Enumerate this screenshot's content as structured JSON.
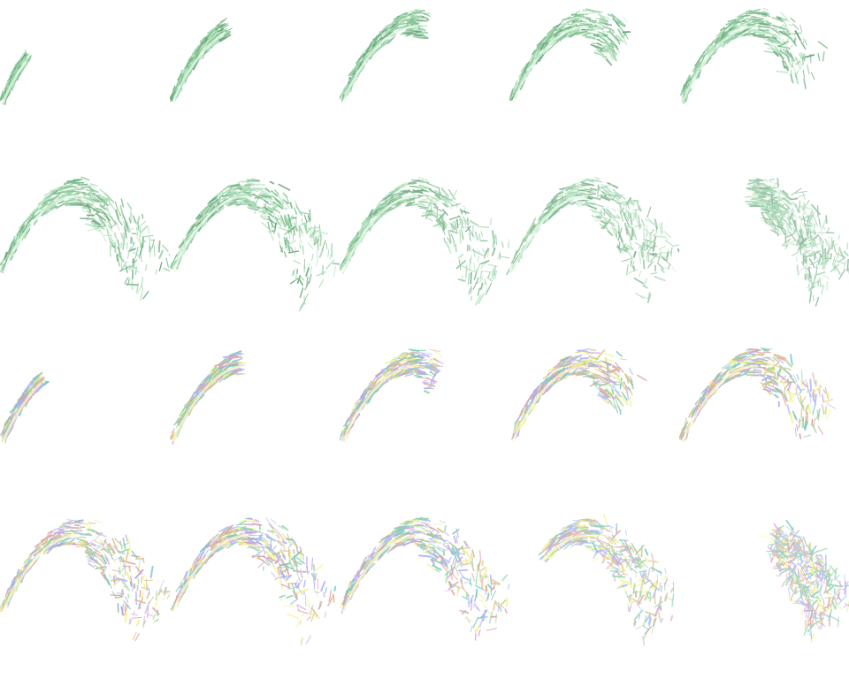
{
  "figure": {
    "grid": {
      "rows": 4,
      "columns": 5
    },
    "sequences": [
      {
        "name": "",
        "palette": [
          "#7fbf8f",
          "#9ad3a8",
          "#6fa67f",
          "#b7e6c2"
        ],
        "frames": [
          {
            "growth": 0.15,
            "fray": 0.0,
            "opacity": 1.0
          },
          {
            "growth": 0.35,
            "fray": 0.0,
            "opacity": 1.0
          },
          {
            "growth": 0.55,
            "fray": 0.05,
            "opacity": 1.0
          },
          {
            "growth": 0.72,
            "fray": 0.1,
            "opacity": 1.0
          },
          {
            "growth": 0.85,
            "fray": 0.2,
            "opacity": 1.0
          },
          {
            "growth": 1.0,
            "fray": 0.3,
            "opacity": 1.0
          },
          {
            "growth": 1.0,
            "fray": 0.35,
            "opacity": 1.0
          },
          {
            "growth": 1.0,
            "fray": 0.4,
            "opacity": 0.95
          },
          {
            "growth": 1.0,
            "fray": 0.5,
            "opacity": 0.85
          },
          {
            "growth": 1.0,
            "fray": 0.6,
            "opacity": 0.75,
            "trim_start": 0.45
          }
        ]
      },
      {
        "name": "",
        "palette": [
          "#8fd6a0",
          "#f2f28a",
          "#79c9c2",
          "#c7a0e0",
          "#e0a8a8",
          "#b0b5ff",
          "#d8c48a"
        ],
        "frames": [
          {
            "growth": 0.25,
            "fray": 0.0,
            "opacity": 1.0
          },
          {
            "growth": 0.45,
            "fray": 0.05,
            "opacity": 1.0
          },
          {
            "growth": 0.62,
            "fray": 0.1,
            "opacity": 1.0
          },
          {
            "growth": 0.78,
            "fray": 0.25,
            "opacity": 1.0
          },
          {
            "growth": 0.9,
            "fray": 0.35,
            "opacity": 1.0
          },
          {
            "growth": 1.0,
            "fray": 0.45,
            "opacity": 1.0
          },
          {
            "growth": 1.0,
            "fray": 0.5,
            "opacity": 1.0
          },
          {
            "growth": 1.0,
            "fray": 0.55,
            "opacity": 1.0
          },
          {
            "growth": 1.0,
            "fray": 0.6,
            "opacity": 0.9,
            "trim_start": 0.2
          },
          {
            "growth": 1.0,
            "fray": 0.75,
            "opacity": 0.85,
            "trim_start": 0.6
          }
        ]
      }
    ]
  }
}
